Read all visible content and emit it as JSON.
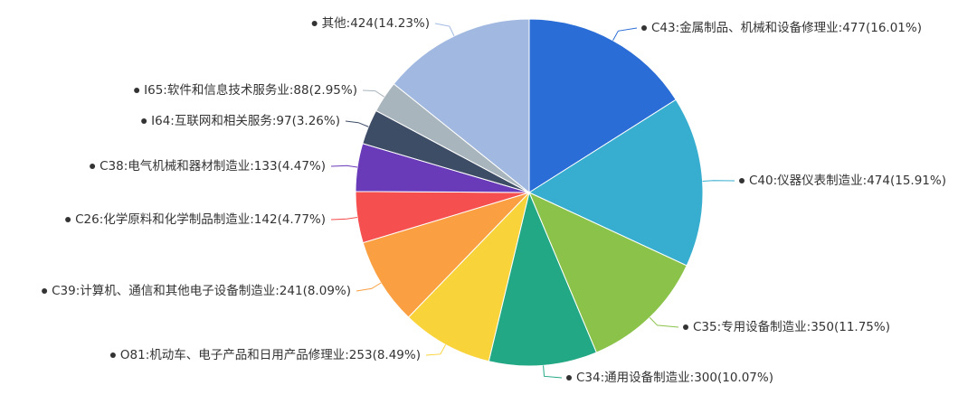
{
  "chart_data": {
    "type": "pie",
    "labels": [
      "C43:金属制品、机械和设备修理业:477(16.01%)",
      "C40:仪器仪表制造业:474(15.91%)",
      "C35:专用设备制造业:350(11.75%)",
      "C34:通用设备制造业:300(10.07%)",
      "O81:机动车、电子产品和日用产品修理业:253(8.49%)",
      "C39:计算机、通信和其他电子设备制造业:241(8.09%)",
      "C26:化学原料和化学制品制造业:142(4.77%)",
      "C38:电气机械和器材制造业:133(4.47%)",
      "I64:互联网和相关服务:97(3.26%)",
      "I65:软件和信息技术服务业:88(2.95%)",
      "其他:424(14.23%)"
    ],
    "values": [
      477,
      474,
      350,
      300,
      253,
      241,
      142,
      133,
      97,
      88,
      424
    ],
    "colors": [
      "#2a6dd6",
      "#37aecf",
      "#8bc34a",
      "#22a884",
      "#f9d33a",
      "#fba042",
      "#f5504f",
      "#6a3bb9",
      "#3e4d66",
      "#a9b5bd",
      "#a1b9e0"
    ]
  }
}
